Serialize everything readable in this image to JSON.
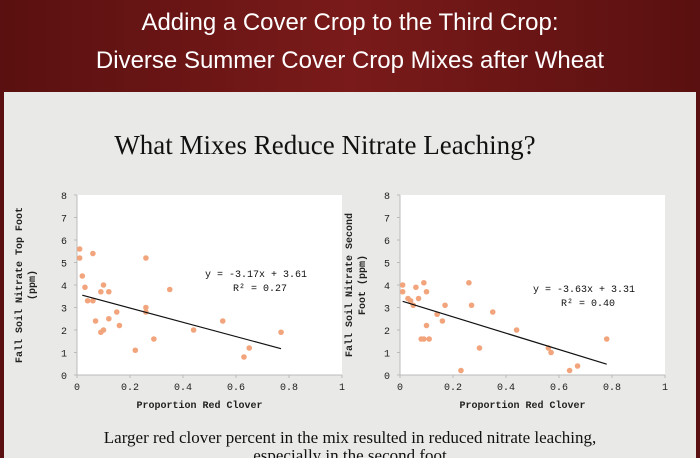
{
  "slide": {
    "title_lines": [
      "Adding a Cover Crop to the Third Crop:",
      "Diverse Summer Cover Crop Mixes after Wheat"
    ],
    "heading": "What Mixes Reduce Nitrate Leaching?",
    "caption_lines": [
      "Larger red clover percent in the mix resulted in reduced nitrate leaching,",
      "especially in the second foot"
    ]
  },
  "chart_data": [
    {
      "type": "scatter",
      "xlabel": "Proportion Red Clover",
      "ylabel_lines": [
        "Fall Soil Nitrate Top Foot",
        "(ppm)"
      ],
      "equation": "y = -3.17x + 3.61",
      "r_squared": "R² = 0.27",
      "trendline": {
        "slope": -3.17,
        "intercept": 3.61,
        "xlim": [
          0.02,
          0.77
        ]
      },
      "color": "#f2a57c",
      "xlim": [
        0,
        1
      ],
      "ylim": [
        0,
        8
      ],
      "xticks": [
        0,
        0.2,
        0.4,
        0.6,
        0.8,
        1
      ],
      "yticks": [
        0,
        1,
        2,
        3,
        4,
        5,
        6,
        7,
        8
      ],
      "x": [
        0.01,
        0.01,
        0.06,
        0.02,
        0.03,
        0.04,
        0.06,
        0.09,
        0.1,
        0.12,
        0.07,
        0.09,
        0.1,
        0.12,
        0.15,
        0.16,
        0.22,
        0.26,
        0.26,
        0.26,
        0.29,
        0.35,
        0.44,
        0.55,
        0.63,
        0.65,
        0.77
      ],
      "y": [
        5.6,
        5.2,
        5.4,
        4.4,
        3.9,
        3.3,
        3.3,
        3.7,
        4.0,
        3.7,
        2.4,
        1.9,
        2.0,
        2.5,
        2.8,
        2.2,
        1.1,
        5.2,
        3.0,
        2.8,
        1.6,
        3.8,
        2.0,
        2.4,
        0.8,
        1.2,
        1.9
      ]
    },
    {
      "type": "scatter",
      "xlabel": "Proportion Red Clover",
      "ylabel_lines": [
        "Fall Soil Nitrate Second",
        "Foot (ppm)"
      ],
      "equation": "y = -3.63x + 3.31",
      "r_squared": "R² = 0.40",
      "trendline": {
        "slope": -3.63,
        "intercept": 3.31,
        "xlim": [
          0.01,
          0.78
        ]
      },
      "color": "#f2a57c",
      "xlim": [
        0,
        1
      ],
      "ylim": [
        0,
        8
      ],
      "xticks": [
        0,
        0.2,
        0.4,
        0.6,
        0.8,
        1
      ],
      "yticks": [
        0,
        1,
        2,
        3,
        4,
        5,
        6,
        7,
        8
      ],
      "x": [
        0.01,
        0.01,
        0.03,
        0.04,
        0.06,
        0.07,
        0.05,
        0.09,
        0.1,
        0.1,
        0.08,
        0.09,
        0.11,
        0.14,
        0.16,
        0.17,
        0.23,
        0.26,
        0.27,
        0.3,
        0.35,
        0.44,
        0.56,
        0.57,
        0.64,
        0.67,
        0.78
      ],
      "y": [
        4.0,
        3.7,
        3.4,
        3.3,
        3.9,
        3.4,
        3.1,
        4.1,
        3.7,
        2.2,
        1.6,
        1.6,
        1.6,
        2.7,
        2.4,
        3.1,
        0.2,
        4.1,
        3.1,
        1.2,
        2.8,
        2.0,
        1.2,
        1.0,
        0.2,
        0.4,
        1.6
      ]
    }
  ]
}
